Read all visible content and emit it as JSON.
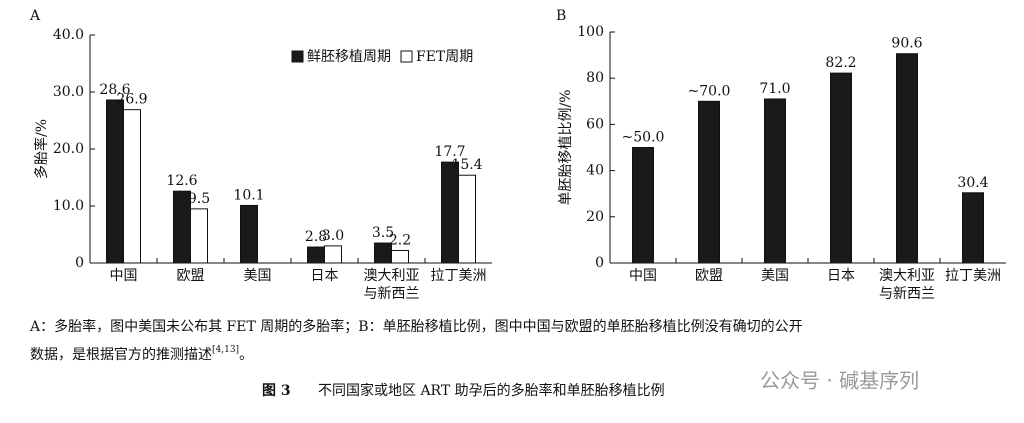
{
  "chart_data": [
    {
      "type": "bar",
      "panel": "A",
      "y_label": "多胎率/%",
      "categories": [
        "中国",
        "欧盟",
        "美国",
        "日本",
        "澳大利亚\n与新西兰",
        "拉丁美洲"
      ],
      "series": [
        {
          "name": "鲜胚移植周期",
          "color": "#1a1a1a",
          "values": [
            28.6,
            12.6,
            10.1,
            2.8,
            3.5,
            17.7
          ]
        },
        {
          "name": "FET周期",
          "color": "#ffffff",
          "values": [
            26.9,
            9.5,
            null,
            3.0,
            2.2,
            15.4
          ],
          "value_labels": [
            "26.9",
            "9.5",
            null,
            "3.0",
            "2.2",
            "15.4"
          ]
        }
      ],
      "ylim": [
        0,
        40
      ],
      "yticks": [
        0,
        {
          "value": 10,
          "label": "10.0"
        },
        {
          "value": 20,
          "label": "20.0"
        },
        {
          "value": 30,
          "label": "30.0"
        },
        {
          "value": 40,
          "label": "40.0"
        }
      ],
      "legend": "top-right"
    },
    {
      "type": "bar",
      "panel": "B",
      "y_label": "单胚胎移植比例/%",
      "categories": [
        "中国",
        "欧盟",
        "美国",
        "日本",
        "澳大利亚\n与新西兰",
        "拉丁美洲"
      ],
      "series": [
        {
          "color": "#1a1a1a",
          "values": [
            50,
            70,
            71,
            82.2,
            90.6,
            30.4
          ],
          "value_labels": [
            "~50.0",
            "~70.0",
            "71.0",
            "82.2",
            "90.6",
            "30.4"
          ]
        }
      ],
      "ylim": [
        0,
        100
      ],
      "yticks": [
        0,
        20,
        40,
        60,
        80,
        100
      ]
    }
  ],
  "caption": {
    "line1": "A：多胎率，图中美国未公布其 FET 周期的多胎率；B：单胚胎移植比例，图中中国与欧盟的单胚胎移植比例没有确切的公开",
    "line2": "数据，是根据官方的推测描述",
    "ref": "[4,13]",
    "end": "。"
  },
  "figure": {
    "number": "图 3",
    "title": "不同国家或地区 ART 助孕后的多胎率和单胚胎移植比例"
  },
  "watermark": "公众号 · 碱基序列"
}
